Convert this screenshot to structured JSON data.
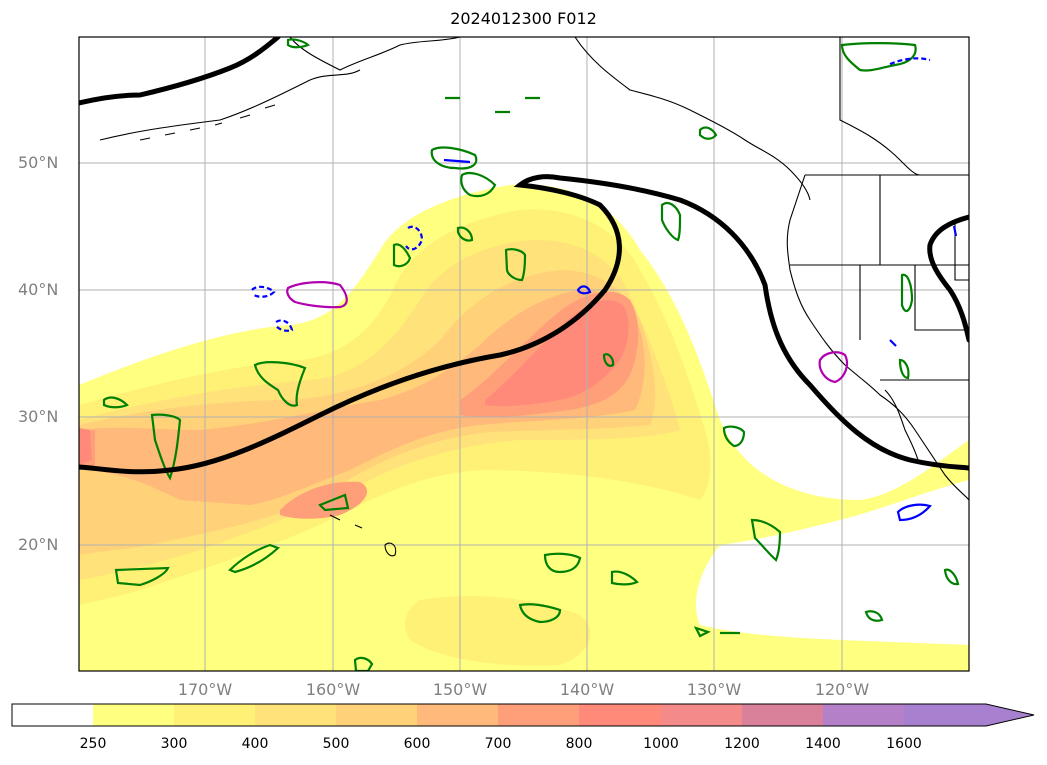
{
  "title": "2024012300 F012",
  "map": {
    "lat_labels": [
      "50°N",
      "40°N",
      "30°N",
      "20°N"
    ],
    "lon_labels": [
      "170°W",
      "160°W",
      "150°W",
      "140°W",
      "130°W",
      "120°W"
    ],
    "colors": {
      "ivt_fill": [
        "#ffff80",
        "#fff176",
        "#ffe37a",
        "#ffd27a",
        "#ffb97a",
        "#ff9f7a",
        "#ff8a7a",
        "#f58a8a",
        "#d9809a",
        "#b480c8",
        "#a880d0"
      ],
      "jet_line": "#000000",
      "cape_contour": "#008000",
      "omega_contour": "#0000ff",
      "pv_contour": "#b000b0",
      "coastline": "#000000",
      "grid": "#b0b0b0"
    }
  },
  "colorbar": {
    "ticks": [
      "250",
      "300",
      "400",
      "500",
      "600",
      "700",
      "800",
      "1000",
      "1200",
      "1400",
      "1600"
    ],
    "colors": [
      "#ffffff",
      "#ffff80",
      "#fff176",
      "#ffe37a",
      "#ffd27a",
      "#ffb97a",
      "#ff9f7a",
      "#ff8a7a",
      "#f58a8a",
      "#d9809a",
      "#b480c8",
      "#a880d0"
    ],
    "extend": "max"
  }
}
